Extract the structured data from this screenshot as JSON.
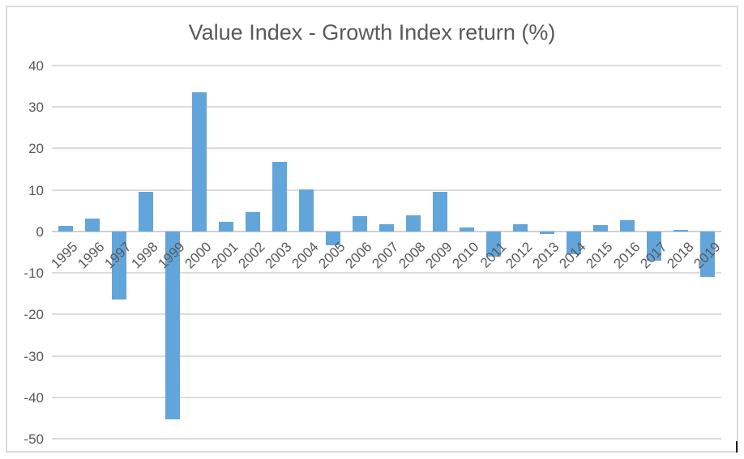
{
  "chart_data": {
    "type": "bar",
    "title": "Value Index - Growth Index return (%)",
    "categories": [
      "1995",
      "1996",
      "1997",
      "1998",
      "1999",
      "2000",
      "2001",
      "2002",
      "2003",
      "2004",
      "2005",
      "2006",
      "2007",
      "2008",
      "2009",
      "2010",
      "2011",
      "2012",
      "2013",
      "2014",
      "2015",
      "2016",
      "2017",
      "2018",
      "2019"
    ],
    "values": [
      1.3,
      3.1,
      -16.5,
      9.6,
      -45.3,
      33.5,
      2.4,
      4.6,
      16.7,
      10.1,
      -3.4,
      3.7,
      1.8,
      3.9,
      9.6,
      1.0,
      -6.1,
      1.7,
      -0.6,
      -5.5,
      1.6,
      2.8,
      -7.0,
      0.4,
      -11.0
    ],
    "yticks": [
      40,
      30,
      20,
      10,
      0,
      -10,
      -20,
      -30,
      -40,
      -50
    ],
    "ylim": [
      -50,
      40
    ],
    "xlabel": "",
    "ylabel": "",
    "grid": true,
    "legend_position": "none",
    "x_label_rotation_deg": -45,
    "colors": {
      "bar": "#62a5da",
      "gridline": "#dcdcdc",
      "axis_line": "#d0d0d0",
      "text": "#595959",
      "chart_border": "#d9d9d9",
      "background": "#ffffff"
    }
  }
}
